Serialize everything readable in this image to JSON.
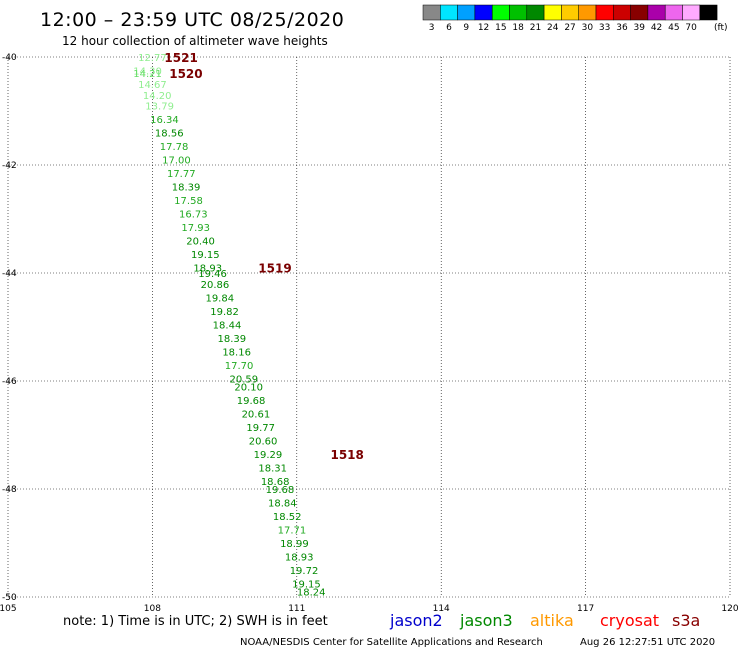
{
  "header": {
    "title": "12:00 – 23:59 UTC 08/25/2020",
    "subtitle": "12 hour collection of altimeter wave heights"
  },
  "colorbar": {
    "unit": "(ft)",
    "swatches": [
      {
        "label": "3",
        "color": "#888888"
      },
      {
        "label": "6",
        "color": "#00e5ff"
      },
      {
        "label": "9",
        "color": "#00a0ff"
      },
      {
        "label": "12",
        "color": "#0000ff"
      },
      {
        "label": "15",
        "color": "#00ff00"
      },
      {
        "label": "18",
        "color": "#00c000"
      },
      {
        "label": "21",
        "color": "#008800"
      },
      {
        "label": "24",
        "color": "#ffff00"
      },
      {
        "label": "27",
        "color": "#ffcc00"
      },
      {
        "label": "30",
        "color": "#ff9900"
      },
      {
        "label": "33",
        "color": "#ff0000"
      },
      {
        "label": "36",
        "color": "#cc0000"
      },
      {
        "label": "39",
        "color": "#880000"
      },
      {
        "label": "42",
        "color": "#aa00aa"
      },
      {
        "label": "45",
        "color": "#ee66ee"
      },
      {
        "label": "70",
        "color": "#ffaaff"
      },
      {
        "label": "",
        "color": "#000000"
      }
    ]
  },
  "chart_data": {
    "type": "scatter",
    "xlim": [
      105,
      120
    ],
    "ylim": [
      -50,
      -40
    ],
    "x_ticks": [
      "105",
      "108",
      "111",
      "114",
      "117",
      "120"
    ],
    "y_ticks": [
      "-40",
      "-42",
      "-44",
      "-46",
      "-48",
      "-50"
    ],
    "grid": true,
    "points": [
      {
        "x": 108.0,
        "y": -40.0,
        "v": "12.77",
        "color": "#90ee90"
      },
      {
        "x": 107.9,
        "y": -40.25,
        "v": "14.30",
        "color": "#90ee90"
      },
      {
        "x": 107.9,
        "y": -40.3,
        "v": "14.21",
        "color": "#66dd66"
      },
      {
        "x": 108.0,
        "y": -40.5,
        "v": "14.67",
        "color": "#90ee90"
      },
      {
        "x": 108.1,
        "y": -40.7,
        "v": "14.20",
        "color": "#90ee90"
      },
      {
        "x": 108.15,
        "y": -40.9,
        "v": "13.79",
        "color": "#90ee90"
      },
      {
        "x": 108.25,
        "y": -41.15,
        "v": "16.34",
        "color": "#22aa22"
      },
      {
        "x": 108.35,
        "y": -41.4,
        "v": "18.56",
        "color": "#008800"
      },
      {
        "x": 108.45,
        "y": -41.65,
        "v": "17.78",
        "color": "#22aa22"
      },
      {
        "x": 108.5,
        "y": -41.9,
        "v": "17.00",
        "color": "#22aa22"
      },
      {
        "x": 108.6,
        "y": -42.15,
        "v": "17.77",
        "color": "#22aa22"
      },
      {
        "x": 108.7,
        "y": -42.4,
        "v": "18.39",
        "color": "#008800"
      },
      {
        "x": 108.75,
        "y": -42.65,
        "v": "17.58",
        "color": "#22aa22"
      },
      {
        "x": 108.85,
        "y": -42.9,
        "v": "16.73",
        "color": "#22aa22"
      },
      {
        "x": 108.9,
        "y": -43.15,
        "v": "17.93",
        "color": "#22aa22"
      },
      {
        "x": 109.0,
        "y": -43.4,
        "v": "20.40",
        "color": "#008800"
      },
      {
        "x": 109.1,
        "y": -43.65,
        "v": "19.15",
        "color": "#008800"
      },
      {
        "x": 109.15,
        "y": -43.9,
        "v": "18.93",
        "color": "#008800"
      },
      {
        "x": 109.25,
        "y": -44.0,
        "v": "19.46",
        "color": "#008800"
      },
      {
        "x": 109.3,
        "y": -44.2,
        "v": "20.86",
        "color": "#008800"
      },
      {
        "x": 109.4,
        "y": -44.45,
        "v": "19.84",
        "color": "#008800"
      },
      {
        "x": 109.5,
        "y": -44.7,
        "v": "19.82",
        "color": "#008800"
      },
      {
        "x": 109.55,
        "y": -44.95,
        "v": "18.44",
        "color": "#008800"
      },
      {
        "x": 109.65,
        "y": -45.2,
        "v": "18.39",
        "color": "#008800"
      },
      {
        "x": 109.75,
        "y": -45.45,
        "v": "18.16",
        "color": "#008800"
      },
      {
        "x": 109.8,
        "y": -45.7,
        "v": "17.70",
        "color": "#22aa22"
      },
      {
        "x": 109.9,
        "y": -45.95,
        "v": "20.59",
        "color": "#008800"
      },
      {
        "x": 110.0,
        "y": -46.1,
        "v": "20.10",
        "color": "#008800"
      },
      {
        "x": 110.05,
        "y": -46.35,
        "v": "19.68",
        "color": "#008800"
      },
      {
        "x": 110.15,
        "y": -46.6,
        "v": "20.61",
        "color": "#008800"
      },
      {
        "x": 110.25,
        "y": -46.85,
        "v": "19.77",
        "color": "#008800"
      },
      {
        "x": 110.3,
        "y": -47.1,
        "v": "20.60",
        "color": "#008800"
      },
      {
        "x": 110.4,
        "y": -47.35,
        "v": "19.29",
        "color": "#008800"
      },
      {
        "x": 110.5,
        "y": -47.6,
        "v": "18.31",
        "color": "#008800"
      },
      {
        "x": 110.55,
        "y": -47.85,
        "v": "18.68",
        "color": "#008800"
      },
      {
        "x": 110.65,
        "y": -48.0,
        "v": "19.68",
        "color": "#008800"
      },
      {
        "x": 110.7,
        "y": -48.25,
        "v": "18.84",
        "color": "#008800"
      },
      {
        "x": 110.8,
        "y": -48.5,
        "v": "18.52",
        "color": "#008800"
      },
      {
        "x": 110.9,
        "y": -48.75,
        "v": "17.71",
        "color": "#22aa22"
      },
      {
        "x": 110.95,
        "y": -49.0,
        "v": "18.99",
        "color": "#008800"
      },
      {
        "x": 111.05,
        "y": -49.25,
        "v": "18.93",
        "color": "#008800"
      },
      {
        "x": 111.15,
        "y": -49.5,
        "v": "19.72",
        "color": "#008800"
      },
      {
        "x": 111.2,
        "y": -49.75,
        "v": "19.15",
        "color": "#008800"
      },
      {
        "x": 111.3,
        "y": -49.9,
        "v": "18.24",
        "color": "#008800"
      }
    ],
    "pass_labels": [
      {
        "x": 108.25,
        "y": -40.0,
        "label": "1521"
      },
      {
        "x": 108.35,
        "y": -40.3,
        "label": "1520"
      },
      {
        "x": 110.2,
        "y": -43.9,
        "label": "1519"
      },
      {
        "x": 111.7,
        "y": -47.35,
        "label": "1518"
      }
    ]
  },
  "footer": {
    "note": "note:  1) Time is in UTC; 2) SWH is in feet",
    "satellites": [
      {
        "name": "jason2",
        "color": "#0000cc"
      },
      {
        "name": "jason3",
        "color": "#008800"
      },
      {
        "name": "altika",
        "color": "#ff9900"
      },
      {
        "name": "cryosat",
        "color": "#ff0000"
      },
      {
        "name": "s3a",
        "color": "#880000"
      }
    ],
    "credit": "NOAA/NESDIS Center for Satellite Applications and Research",
    "timestamp": "Aug 26 12:27:51 UTC 2020"
  }
}
